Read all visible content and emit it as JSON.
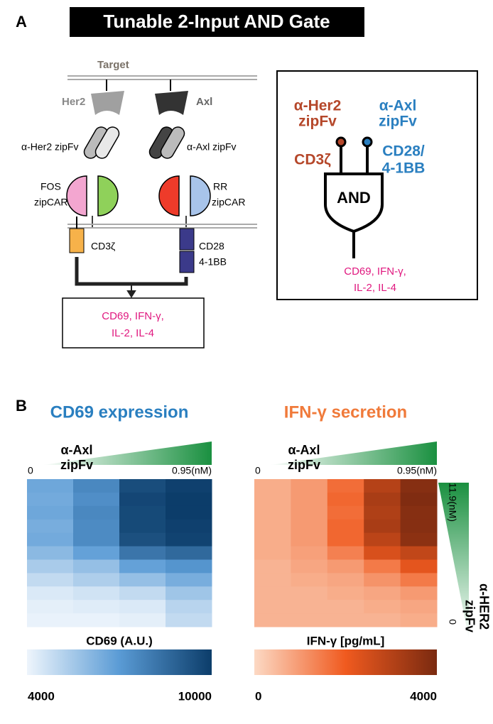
{
  "panel_a": {
    "label": "A",
    "title": "Tunable 2-Input AND Gate",
    "target": "Target",
    "her2": "Her2",
    "axl": "Axl",
    "her2_zipfv": "α-Her2 zipFv",
    "axl_zipfv": "α-Axl zipFv",
    "fos_zipcar": [
      "FOS",
      "zipCAR"
    ],
    "rr_zipcar": [
      "RR",
      "zipCAR"
    ],
    "cd3z": "CD3ζ",
    "cd28": [
      "CD28",
      "4-1BB"
    ],
    "output": [
      "CD69, IFN-γ,",
      "IL-2, IL-4"
    ],
    "gate": {
      "input1": [
        "α-Her2",
        "zipFv"
      ],
      "input2": [
        "α-Axl",
        "zipFv"
      ],
      "domain1": "CD3ζ",
      "domain2": [
        "CD28/",
        "4-1BB"
      ],
      "label": "AND",
      "output": [
        "CD69, IFN-γ,",
        "IL-2, IL-4"
      ]
    }
  },
  "panel_b": {
    "label": "B",
    "y_axis": {
      "label": [
        "α-HER2",
        "zipFv"
      ],
      "max_label": "11.9(nM)",
      "min_label": "0"
    },
    "heatmaps": [
      {
        "title": "CD69 expression",
        "x_label": [
          "α-Axl",
          "zipFv"
        ],
        "x_min_label": "0",
        "x_max_label": "0.95(nM)",
        "colorbar_label": "CD69 (A.U.)",
        "colorbar_min": 4000,
        "colorbar_max": 10000,
        "colors": [
          "#eef5fc",
          "#5a9bd5",
          "#0c3d6a"
        ],
        "values": [
          [
            6600,
            7600,
            9500,
            9900
          ],
          [
            6500,
            7400,
            9700,
            10000
          ],
          [
            6600,
            7600,
            9600,
            10000
          ],
          [
            6400,
            7500,
            9600,
            9900
          ],
          [
            6500,
            7500,
            9400,
            9800
          ],
          [
            6000,
            6800,
            8200,
            8600
          ],
          [
            5400,
            5800,
            6800,
            7200
          ],
          [
            4900,
            5300,
            5800,
            6400
          ],
          [
            4400,
            4600,
            4900,
            5600
          ],
          [
            4200,
            4300,
            4400,
            5100
          ],
          [
            4100,
            4100,
            4200,
            4900
          ]
        ]
      },
      {
        "title": "IFN-γ secretion",
        "x_label": [
          "α-Axl",
          "zipFv"
        ],
        "x_min_label": "0",
        "x_max_label": "0.95(nM)",
        "colorbar_label": "IFN-γ [pg/mL]",
        "colorbar_min": 0,
        "colorbar_max": 4000,
        "colors": [
          "#fcd9c4",
          "#f05a1f",
          "#7a2a10"
        ],
        "values": [
          [
            700,
            1000,
            1700,
            3000,
            3800
          ],
          [
            700,
            1000,
            1800,
            3200,
            3900
          ],
          [
            700,
            1000,
            1700,
            3100,
            3800
          ],
          [
            700,
            1000,
            1800,
            3200,
            3800
          ],
          [
            700,
            1000,
            1800,
            2900,
            3700
          ],
          [
            700,
            900,
            1400,
            2400,
            2800
          ],
          [
            600,
            800,
            1000,
            1500,
            2200
          ],
          [
            600,
            700,
            800,
            1100,
            1500
          ],
          [
            600,
            600,
            700,
            800,
            1000
          ],
          [
            600,
            600,
            600,
            700,
            800
          ],
          [
            600,
            600,
            600,
            600,
            700
          ]
        ]
      }
    ]
  }
}
